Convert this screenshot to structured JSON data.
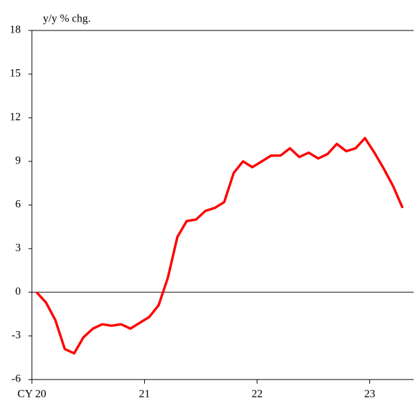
{
  "chart_data": {
    "type": "line",
    "y_label": "y/y % chg.",
    "x": [
      20.042,
      20.125,
      20.208,
      20.292,
      20.375,
      20.458,
      20.542,
      20.625,
      20.708,
      20.792,
      20.875,
      20.958,
      21.042,
      21.125,
      21.208,
      21.292,
      21.375,
      21.458,
      21.542,
      21.625,
      21.708,
      21.792,
      21.875,
      21.958,
      22.042,
      22.125,
      22.208,
      22.292,
      22.375,
      22.458,
      22.542,
      22.625,
      22.708,
      22.792,
      22.875,
      22.958,
      23.042,
      23.125,
      23.208,
      23.292
    ],
    "series": [
      {
        "color": "#ff0000",
        "values": [
          0,
          -0.7,
          -1.9,
          -3.9,
          -4.2,
          -3.1,
          -2.5,
          -2.2,
          -2.3,
          -2.2,
          -2.5,
          -2.1,
          -1.7,
          -0.9,
          1.0,
          3.8,
          4.9,
          5.0,
          5.6,
          5.8,
          6.2,
          8.2,
          9.0,
          8.6,
          9.0,
          9.4,
          9.4,
          9.9,
          9.3,
          9.6,
          9.2,
          9.5,
          10.2,
          9.7,
          9.9,
          10.6,
          9.6,
          8.5,
          7.3,
          5.8
        ]
      }
    ],
    "xlim": [
      20,
      23.39
    ],
    "xticks": [
      {
        "value": 20,
        "label": "CY 20"
      },
      21,
      22,
      23
    ],
    "ylim": [
      -6,
      18
    ],
    "yticks": [
      -6,
      -3,
      0,
      3,
      6,
      9,
      12,
      15,
      18
    ],
    "zero_line": true
  }
}
